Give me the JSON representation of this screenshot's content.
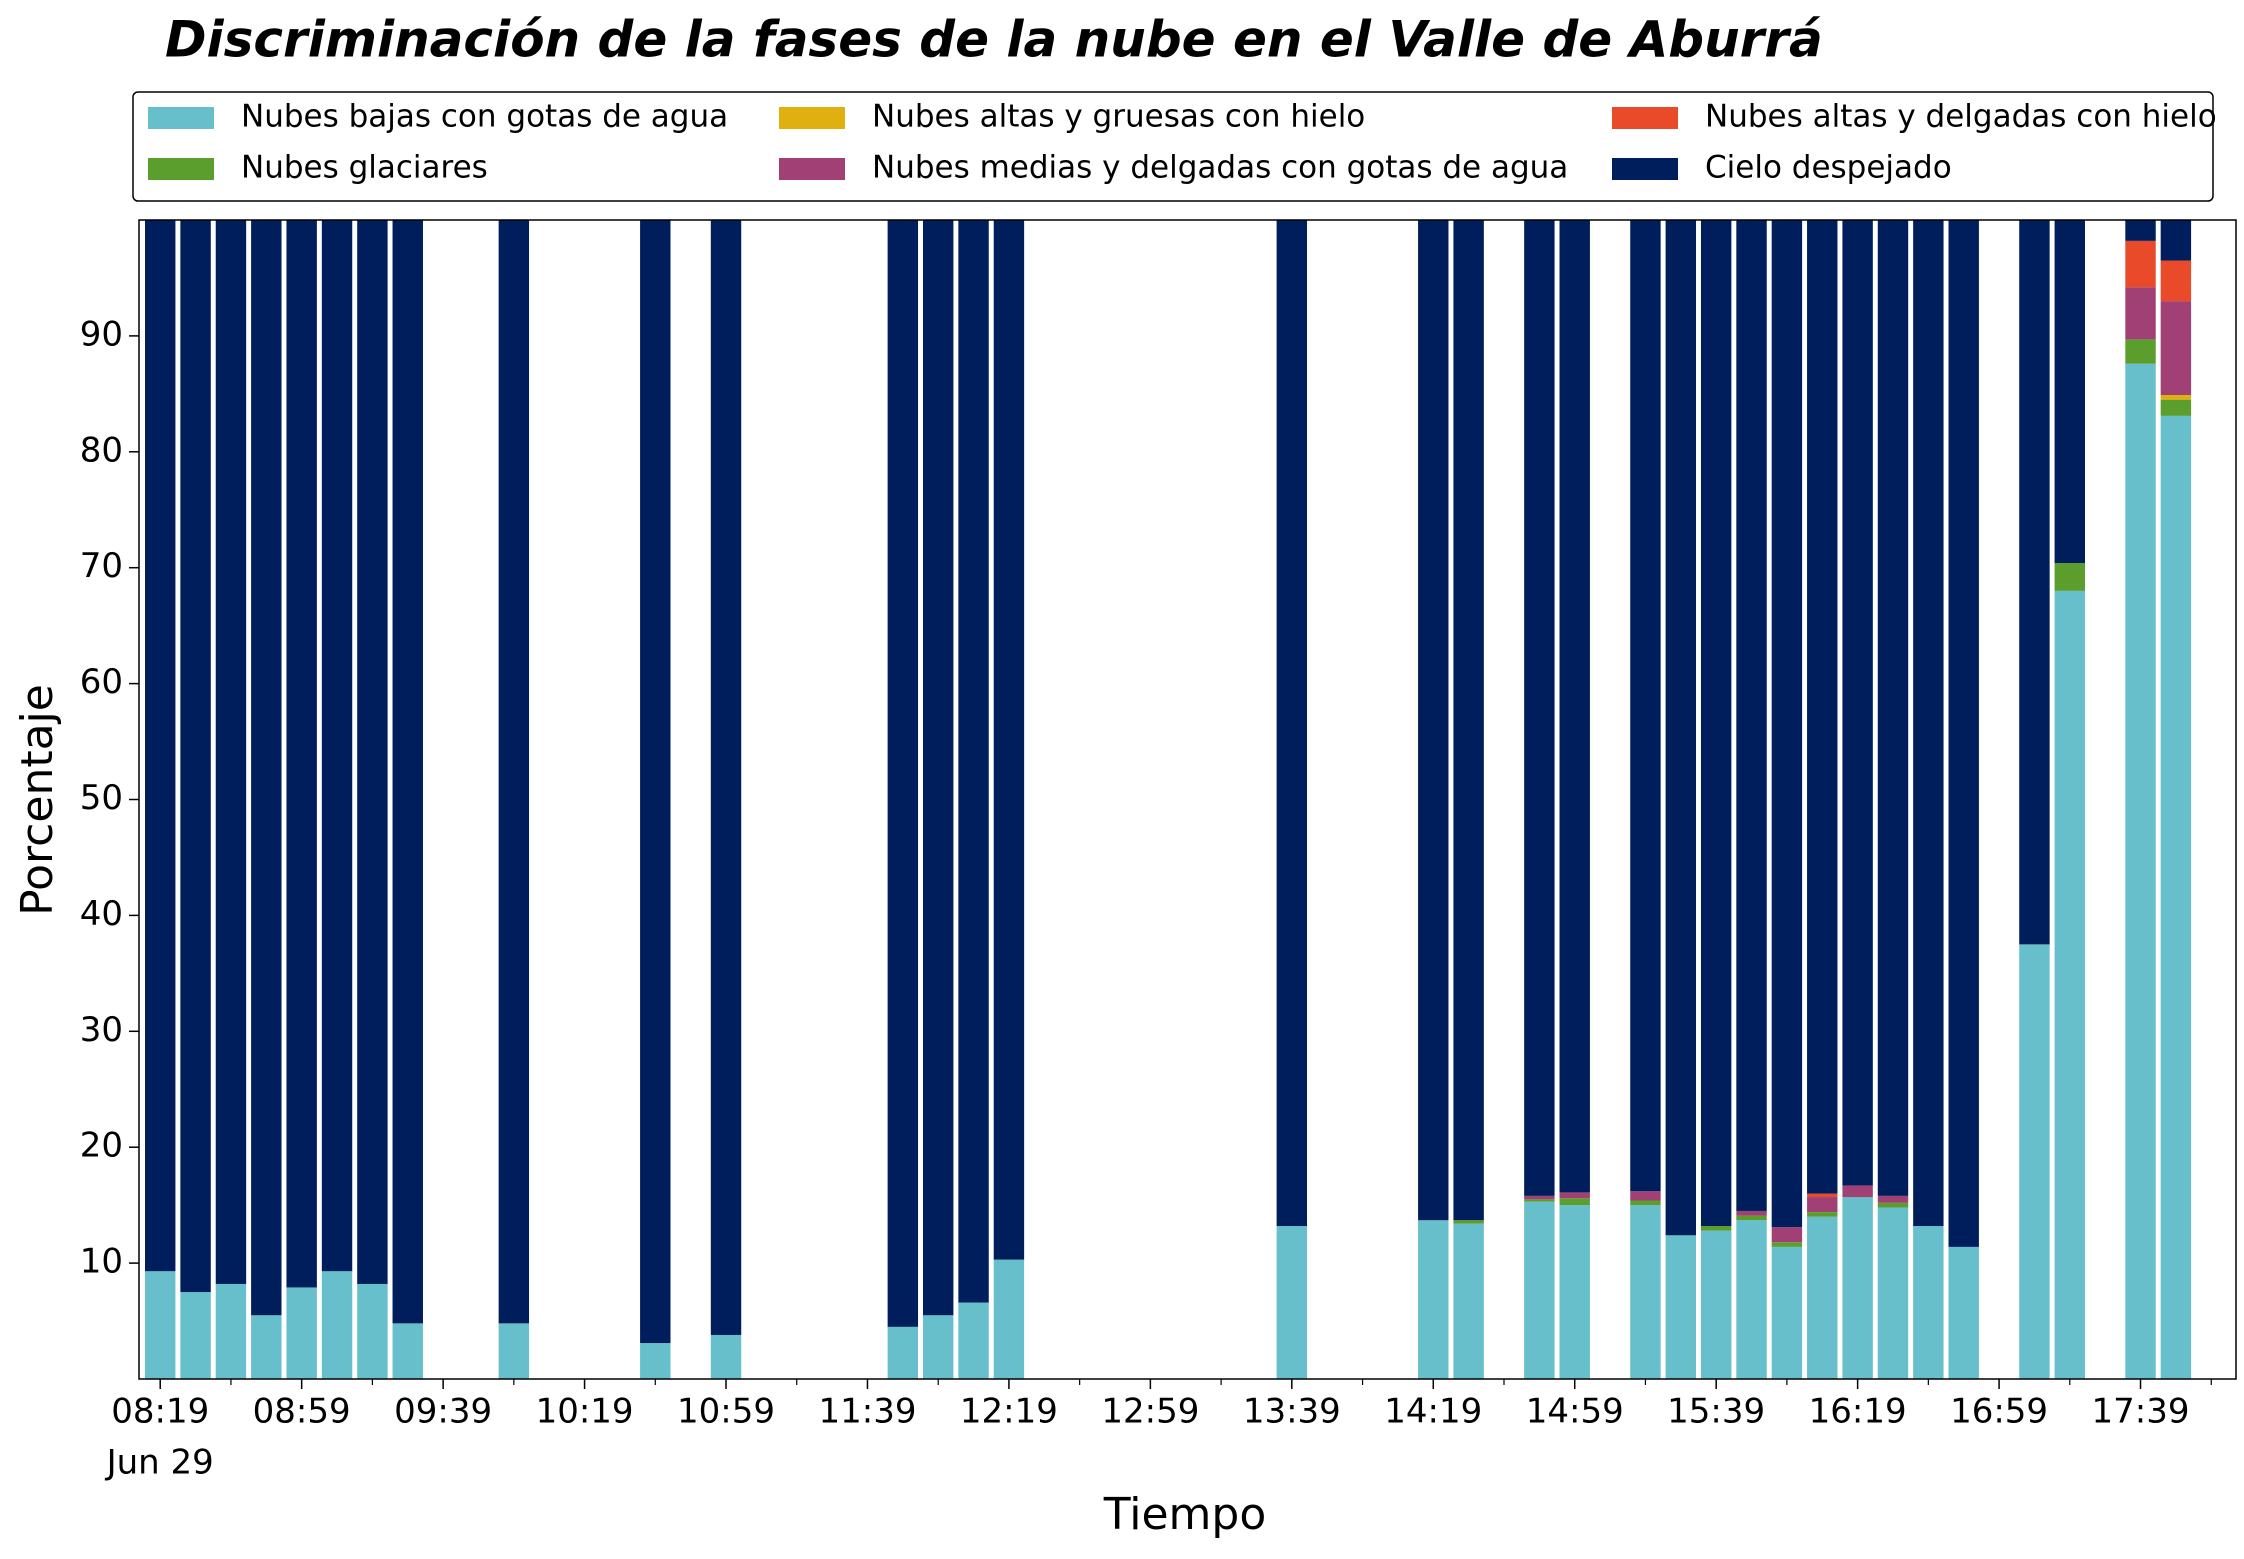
{
  "chart_data": {
    "type": "stacked_bar",
    "title": "Discriminación de la fases de la nube en el Valle de Aburrá",
    "xlabel": "Tiempo",
    "ylabel": "Porcentaje",
    "x": [
      "08:19",
      "08:29",
      "08:39",
      "08:49",
      "08:59",
      "09:09",
      "09:19",
      "09:29",
      "09:59",
      "10:39",
      "10:59",
      "11:49",
      "11:59",
      "12:09",
      "12:19",
      "13:39",
      "14:19",
      "14:29",
      "14:49",
      "14:59",
      "15:19",
      "15:29",
      "15:39",
      "15:49",
      "15:59",
      "16:09",
      "16:19",
      "16:29",
      "16:39",
      "16:49",
      "17:09",
      "17:19",
      "17:39",
      "17:49"
    ],
    "xlim": [
      "08:13",
      "18:06"
    ],
    "xticks": [
      "08:19",
      "08:59",
      "09:39",
      "10:19",
      "10:59",
      "11:39",
      "12:19",
      "12:59",
      "13:39",
      "14:19",
      "14:59",
      "15:39",
      "16:19",
      "16:59",
      "17:39"
    ],
    "xminorticks": [
      "08:39",
      "09:19",
      "09:59",
      "10:39",
      "11:19",
      "11:59",
      "12:39",
      "13:19",
      "13:59",
      "14:39",
      "15:19",
      "15:59",
      "16:39",
      "17:19",
      "17:59"
    ],
    "date_label": "Jun 29",
    "ylim": [
      0,
      100
    ],
    "yticks": [
      10,
      20,
      30,
      40,
      50,
      60,
      70,
      80,
      90
    ],
    "legend": "top",
    "series": [
      {
        "name": "Nubes bajas con gotas de agua",
        "color": "#66bfca",
        "values": [
          9.3,
          7.5,
          8.2,
          5.5,
          7.9,
          9.3,
          8.2,
          4.8,
          4.8,
          3.1,
          3.8,
          4.5,
          5.5,
          6.6,
          10.3,
          13.2,
          13.7,
          13.4,
          15.3,
          15.0,
          15.0,
          12.4,
          12.8,
          13.7,
          11.4,
          14.0,
          15.7,
          14.8,
          13.2,
          11.4,
          37.5,
          68.0,
          87.6,
          83.1
        ]
      },
      {
        "name": "Nubes glaciares",
        "color": "#5c9e2e",
        "values": [
          0,
          0,
          0,
          0,
          0,
          0,
          0,
          0,
          0,
          0,
          0,
          0,
          0,
          0,
          0,
          0,
          0,
          0.3,
          0.2,
          0.6,
          0.4,
          0,
          0.4,
          0.4,
          0.4,
          0.4,
          0,
          0.4,
          0,
          0,
          0,
          2.4,
          2.1,
          1.4
        ]
      },
      {
        "name": "Nubes altas y gruesas con hielo",
        "color": "#e0b010",
        "values": [
          0,
          0,
          0,
          0,
          0,
          0,
          0,
          0,
          0,
          0,
          0,
          0,
          0,
          0,
          0,
          0,
          0,
          0,
          0,
          0,
          0,
          0,
          0,
          0,
          0,
          0,
          0,
          0,
          0,
          0,
          0,
          0,
          0,
          0.4
        ]
      },
      {
        "name": "Nubes medias y delgadas con gotas de agua",
        "color": "#a04075",
        "values": [
          0,
          0,
          0,
          0,
          0,
          0,
          0,
          0,
          0,
          0,
          0,
          0,
          0,
          0,
          0,
          0,
          0,
          0,
          0.3,
          0.5,
          0.8,
          0,
          0,
          0.4,
          1.3,
          1.3,
          1.0,
          0.6,
          0,
          0,
          0,
          0,
          4.5,
          8.1
        ]
      },
      {
        "name": "Nubes altas y delgadas con hielo",
        "color": "#e84a2a",
        "values": [
          0,
          0,
          0,
          0,
          0,
          0,
          0,
          0,
          0,
          0,
          0,
          0,
          0,
          0,
          0,
          0,
          0,
          0,
          0,
          0,
          0,
          0,
          0,
          0,
          0,
          0.3,
          0,
          0,
          0,
          0,
          0,
          0,
          4.0,
          3.5
        ]
      },
      {
        "name": "Cielo despejado",
        "color": "#001e5c",
        "values": [
          90.7,
          92.5,
          91.8,
          94.5,
          92.1,
          90.7,
          91.8,
          95.2,
          95.2,
          96.9,
          96.2,
          95.5,
          94.5,
          93.4,
          89.7,
          86.8,
          86.3,
          86.3,
          84.2,
          83.9,
          83.8,
          87.6,
          86.8,
          85.5,
          86.9,
          84.0,
          83.3,
          84.2,
          86.8,
          88.6,
          62.5,
          29.6,
          1.8,
          3.5
        ]
      }
    ]
  }
}
